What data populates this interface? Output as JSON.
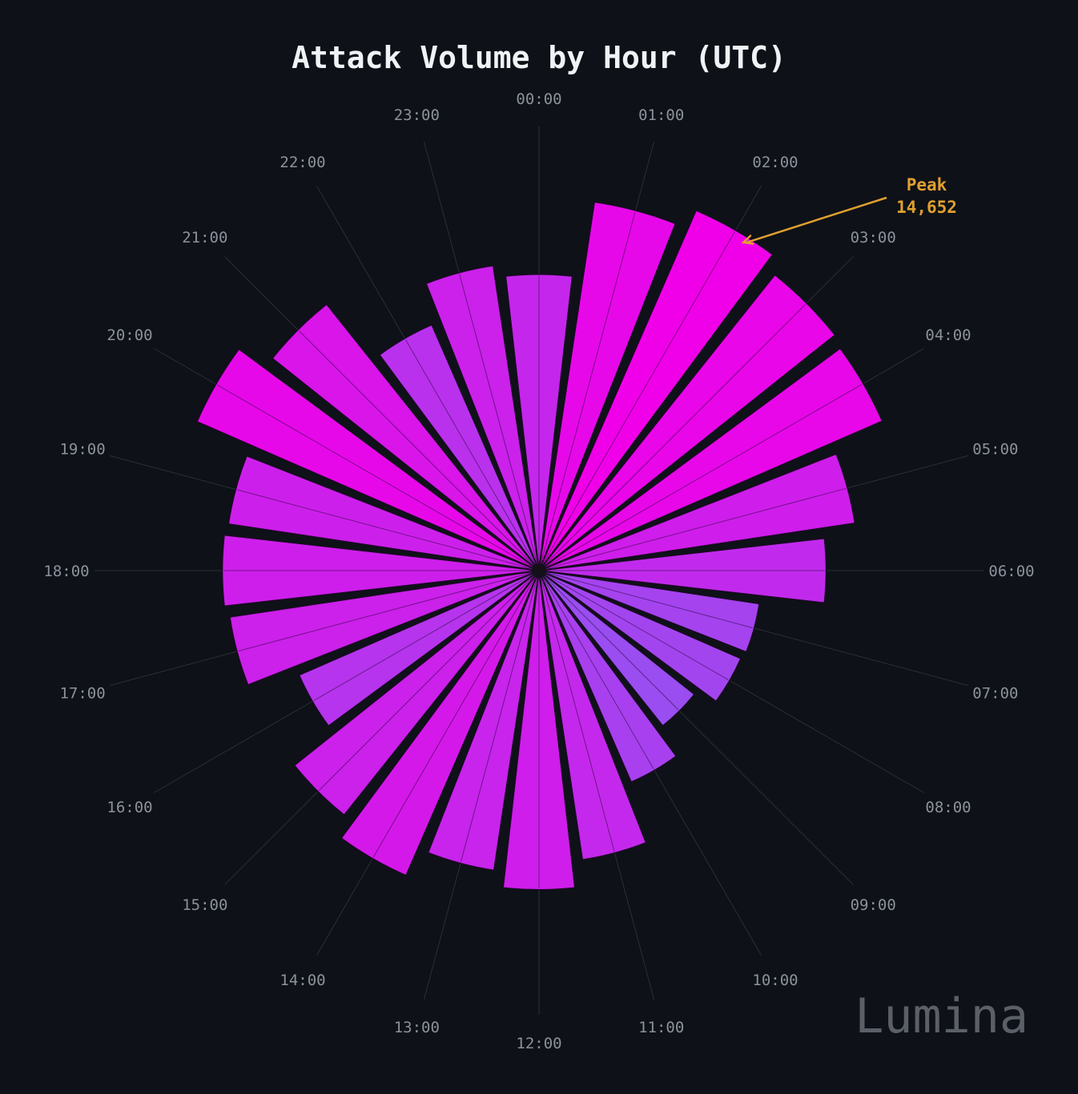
{
  "chart_data": {
    "type": "polar-bar",
    "title": "Attack Volume by Hour (UTC)",
    "categories": [
      "00:00",
      "01:00",
      "02:00",
      "03:00",
      "04:00",
      "05:00",
      "06:00",
      "07:00",
      "08:00",
      "09:00",
      "10:00",
      "11:00",
      "12:00",
      "13:00",
      "14:00",
      "15:00",
      "16:00",
      "17:00",
      "18:00",
      "19:00",
      "20:00",
      "21:00",
      "22:00",
      "23:00"
    ],
    "values": [
      11050,
      13900,
      14652,
      14100,
      13950,
      11900,
      10700,
      8300,
      8200,
      7400,
      8600,
      10900,
      11900,
      11300,
      12400,
      11650,
      9750,
      11650,
      11800,
      11700,
      13900,
      12700,
      10000,
      11500
    ],
    "ymax": 14652,
    "annotation": {
      "target": "02:00",
      "line1": "Peak",
      "line2": "14,652",
      "color": "#e0a030"
    },
    "colors": {
      "low": "#9a4df0",
      "high": "#f000e8",
      "background": "#0e1117",
      "grid": "#2a2f37"
    }
  },
  "watermark": "Lumina"
}
